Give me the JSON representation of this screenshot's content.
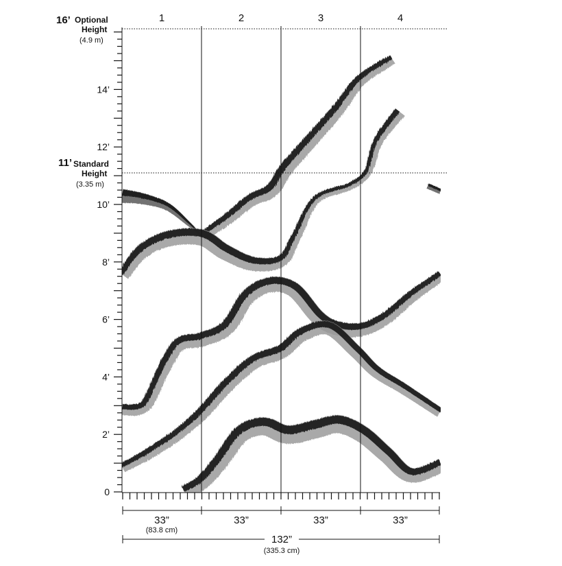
{
  "optional_height": {
    "value": "16’",
    "label_line1": "Optional",
    "label_line2": "Height",
    "metric": "(4.9 m)"
  },
  "standard_height": {
    "value": "11’",
    "label_line1": "Standard",
    "label_line2": "Height",
    "metric": "(3.35 m)"
  },
  "y_ticks": [
    {
      "feet": 0,
      "label": "0"
    },
    {
      "feet": 2,
      "label": "2’"
    },
    {
      "feet": 4,
      "label": "4’"
    },
    {
      "feet": 6,
      "label": "6’"
    },
    {
      "feet": 8,
      "label": "8’"
    },
    {
      "feet": 10,
      "label": "10’"
    },
    {
      "feet": 12,
      "label": "12’"
    },
    {
      "feet": 14,
      "label": "14’"
    }
  ],
  "panels": [
    "1",
    "2",
    "3",
    "4"
  ],
  "panel_widths": {
    "imperial": "33”",
    "metric": "(83.8 cm)"
  },
  "total_width": {
    "imperial": "132”",
    "metric": "(335.3 cm)"
  },
  "colors": {
    "ink": "#111111",
    "brush_dark": "#151515",
    "brush_mid": "#5a5a5a",
    "brush_light": "#9a9a9a"
  }
}
